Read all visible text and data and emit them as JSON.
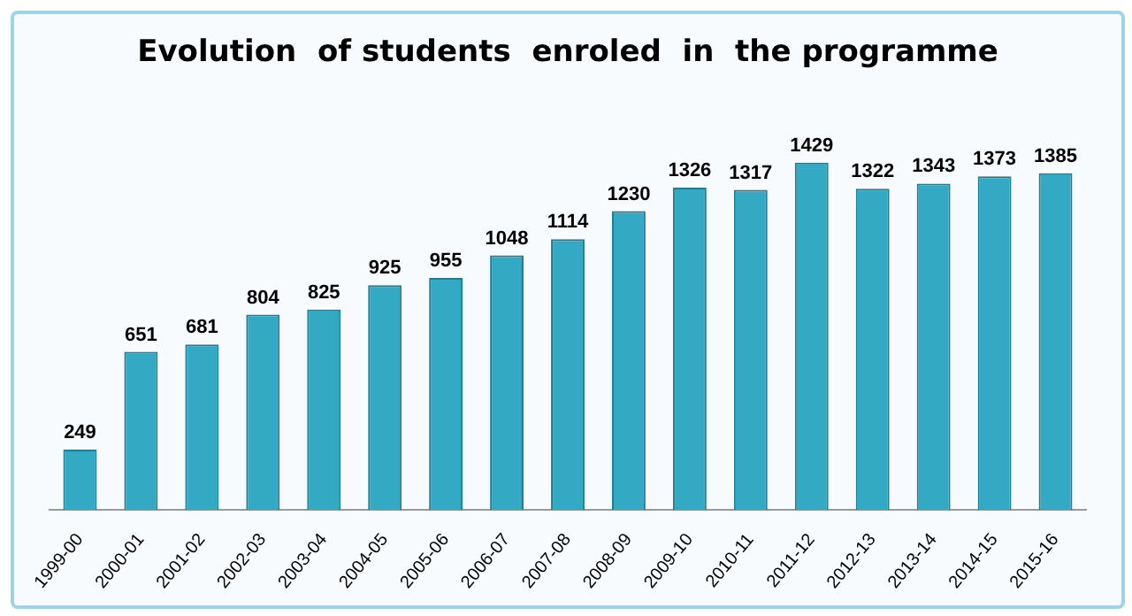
{
  "chart_data": {
    "type": "bar",
    "title": "Evolution  of students  enroled  in  the programme",
    "categories": [
      "1999-00",
      "2000-01",
      "2001-02",
      "2002-03",
      "2003-04",
      "2004-05",
      "2005-06",
      "2006-07",
      "2007-08",
      "2008-09",
      "2009-10",
      "2010-11",
      "2011-12",
      "2012-13",
      "2013-14",
      "2014-15",
      "2015-16"
    ],
    "values": [
      249,
      651,
      681,
      804,
      825,
      925,
      955,
      1048,
      1114,
      1230,
      1326,
      1317,
      1429,
      1322,
      1343,
      1373,
      1385
    ],
    "color": "#33a9c4",
    "data_labels": true,
    "tick_labels": "x",
    "grid": false,
    "legend": false
  }
}
